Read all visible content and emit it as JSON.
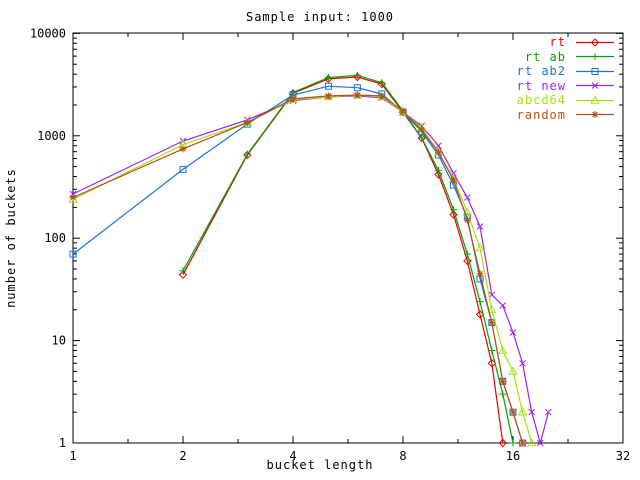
{
  "title": "Sample input: 1000",
  "chart_data": {
    "type": "line",
    "title": "Sample input: 1000",
    "xlabel": "bucket length",
    "ylabel": "number of buckets",
    "x_scale": "log2",
    "y_scale": "log10",
    "xlim": [
      1,
      32
    ],
    "ylim": [
      1,
      10000
    ],
    "x_ticks": [
      1,
      2,
      4,
      8,
      16,
      32
    ],
    "y_ticks": [
      1,
      10,
      100,
      1000,
      10000
    ],
    "grid": "off",
    "legend_position": "top-right-inside",
    "axis_color": "#000000",
    "background_color": "#ffffff",
    "series": [
      {
        "name": "rt",
        "color": "#e60000",
        "marker": "diamond",
        "x": [
          2,
          3,
          4,
          5,
          6,
          7,
          8,
          9,
          10,
          11,
          12,
          13,
          14,
          15
        ],
        "y": [
          44,
          650,
          2600,
          3600,
          3750,
          3200,
          1700,
          950,
          420,
          170,
          60,
          18,
          6,
          1
        ]
      },
      {
        "name": "rt ab",
        "color": "#00a300",
        "marker": "plus",
        "x": [
          2,
          3,
          4,
          5,
          6,
          7,
          8,
          9,
          10,
          11,
          12,
          13,
          14,
          15,
          16
        ],
        "y": [
          48,
          660,
          2650,
          3700,
          3900,
          3300,
          1750,
          950,
          460,
          190,
          70,
          24,
          8,
          3,
          1
        ]
      },
      {
        "name": "rt ab2",
        "color": "#1874d8",
        "marker": "square",
        "x": [
          1,
          2,
          3,
          4,
          5,
          6,
          7,
          8,
          9,
          10,
          11,
          12,
          13,
          14,
          15,
          16,
          17
        ],
        "y": [
          70,
          470,
          1300,
          2500,
          3050,
          2950,
          2560,
          1700,
          1100,
          650,
          330,
          160,
          40,
          15,
          4,
          2,
          1
        ]
      },
      {
        "name": "rt new",
        "color": "#a020f0",
        "marker": "x",
        "x": [
          1,
          2,
          3,
          4,
          5,
          6,
          7,
          8,
          9,
          10,
          11,
          12,
          13,
          14,
          15,
          16,
          17,
          18,
          19,
          20
        ],
        "y": [
          270,
          890,
          1430,
          2200,
          2400,
          2450,
          2350,
          1700,
          1250,
          800,
          430,
          250,
          130,
          28,
          22,
          12,
          6,
          2,
          1,
          2
        ]
      },
      {
        "name": "abcd64",
        "color": "#a4e216",
        "marker": "triangle",
        "x": [
          1,
          2,
          3,
          4,
          5,
          6,
          7,
          8,
          9,
          10,
          11,
          12,
          13,
          14,
          15,
          16,
          17,
          18
        ],
        "y": [
          240,
          820,
          1350,
          2250,
          2400,
          2500,
          2400,
          1700,
          1200,
          700,
          380,
          180,
          80,
          20,
          8,
          5,
          2,
          1
        ]
      },
      {
        "name": "random",
        "color": "#b45113",
        "marker": "asterisk",
        "x": [
          1,
          2,
          3,
          4,
          5,
          6,
          7,
          8,
          9,
          10,
          11,
          12,
          13,
          14,
          15,
          16,
          17
        ],
        "y": [
          250,
          745,
          1350,
          2300,
          2450,
          2500,
          2450,
          1750,
          1140,
          690,
          370,
          150,
          45,
          15,
          4,
          2,
          1
        ]
      }
    ]
  }
}
